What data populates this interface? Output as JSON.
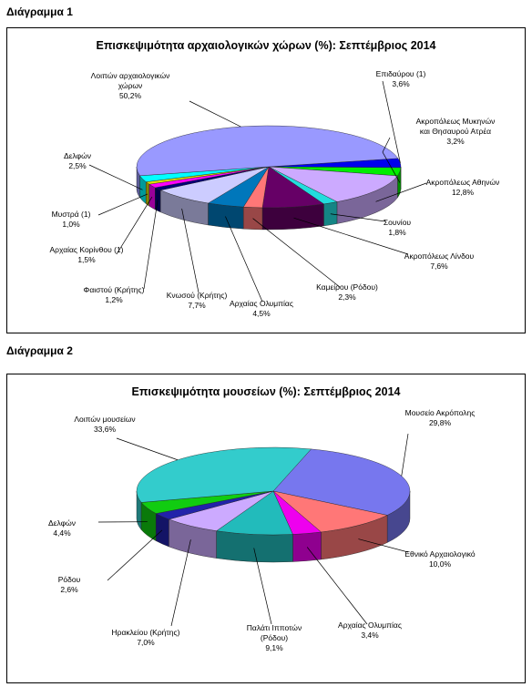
{
  "diagram1": {
    "heading": "Διάγραμμα 1"
  },
  "diagram2": {
    "heading": "Διάγραμμα 2"
  },
  "chart_data": [
    {
      "type": "pie",
      "title": "Επισκεψιμότητα αρχαιολογικών χώρων (%): Σεπτέμβριος 2014",
      "slices": [
        {
          "label": "Επιδαύρου (1)",
          "value": 3.6,
          "value_text": "3,6%",
          "color": "#0000ee"
        },
        {
          "label": "Ακροπόλεως Μυκηνών και Θησαυρού Ατρέα",
          "value": 3.2,
          "value_text": "3,2%",
          "color": "#00ee00"
        },
        {
          "label": "Ακροπόλεως Αθηνών",
          "value": 12.8,
          "value_text": "12,8%",
          "color": "#ccaaff"
        },
        {
          "label": "Σουνίου",
          "value": 1.8,
          "value_text": "1,8%",
          "color": "#22dddd"
        },
        {
          "label": "Ακροπόλεως Λίνδου",
          "value": 7.6,
          "value_text": "7,6%",
          "color": "#660066"
        },
        {
          "label": "Καμείρου (Ρόδου)",
          "value": 2.3,
          "value_text": "2,3%",
          "color": "#ff7777"
        },
        {
          "label": "Αρχαίας Ολυμπίας",
          "value": 4.5,
          "value_text": "4,5%",
          "color": "#0077bb"
        },
        {
          "label": "Κνωσού (Κρήτης)",
          "value": 7.7,
          "value_text": "7,7%",
          "color": "#ccccff"
        },
        {
          "label": "Φαιστού (Κρήτης)",
          "value": 1.2,
          "value_text": "1,2%",
          "color": "#000077"
        },
        {
          "label": "Αρχαίας Κορίνθου (1)",
          "value": 1.5,
          "value_text": "1,5%",
          "color": "#ff00ff"
        },
        {
          "label": "Μυστρά (1)",
          "value": 1.0,
          "value_text": "1,0%",
          "color": "#dddd00"
        },
        {
          "label": "Δελφών",
          "value": 2.5,
          "value_text": "2,5%",
          "color": "#00ffff"
        },
        {
          "label": "Λοιπών αρχαιολογικών χώρων",
          "value": 50.2,
          "value_text": "50,2%",
          "color": "#9999ff"
        }
      ]
    },
    {
      "type": "pie",
      "title": "Επισκεψιμότητα μουσείων (%): Σεπτέμβριος 2014",
      "slices": [
        {
          "label": "Μουσείο Ακρόπολης",
          "value": 29.8,
          "value_text": "29,8%",
          "color": "#7777ee"
        },
        {
          "label": "Εθνικό Αρχαιολογικό",
          "value": 10.0,
          "value_text": "10,0%",
          "color": "#ff7777"
        },
        {
          "label": "Αρχαίας Ολυμπίας",
          "value": 3.4,
          "value_text": "3,4%",
          "color": "#ee00ee"
        },
        {
          "label": "Παλάτι Ιπποτών (Ρόδου)",
          "value": 9.1,
          "value_text": "9,1%",
          "color": "#22bbbb"
        },
        {
          "label": "Ηρακλείου (Κρήτης)",
          "value": 7.0,
          "value_text": "7,0%",
          "color": "#ccaaff"
        },
        {
          "label": "Ρόδου",
          "value": 2.6,
          "value_text": "2,6%",
          "color": "#2222aa"
        },
        {
          "label": "Δελφών",
          "value": 4.4,
          "value_text": "4,4%",
          "color": "#11cc11"
        },
        {
          "label": "Λοιπών μουσείων",
          "value": 33.6,
          "value_text": "33,6%",
          "color": "#33cccc"
        }
      ]
    }
  ]
}
